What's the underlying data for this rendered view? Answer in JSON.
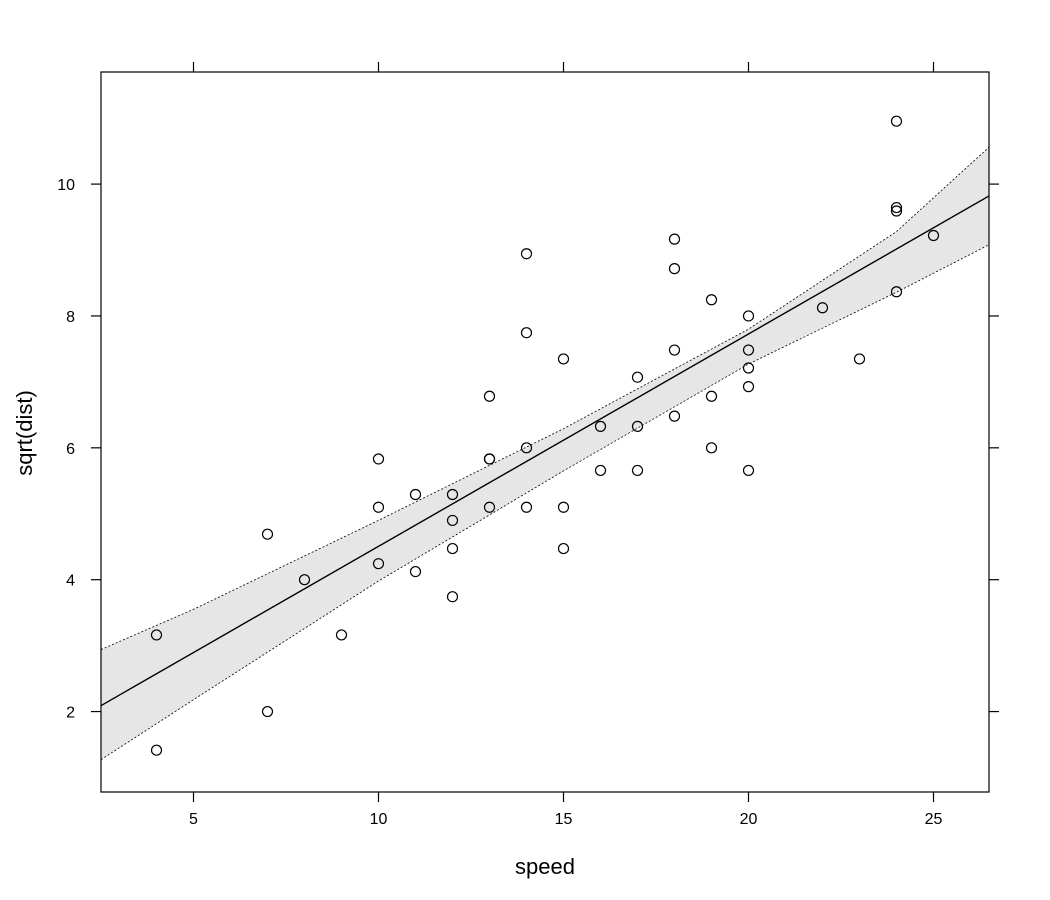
{
  "chart_data": {
    "type": "scatter",
    "title": "",
    "xlabel": "speed",
    "ylabel": "sqrt(dist)",
    "xlim": [
      2.5,
      26.5
    ],
    "ylim": [
      0.78,
      11.7
    ],
    "xticks": [
      5,
      10,
      15,
      20,
      25
    ],
    "yticks": [
      2,
      4,
      6,
      8,
      10
    ],
    "grid": false,
    "points": {
      "x": [
        4,
        4,
        7,
        7,
        8,
        9,
        10,
        10,
        10,
        11,
        11,
        12,
        12,
        12,
        12,
        13,
        13,
        13,
        13,
        14,
        14,
        14,
        14,
        15,
        15,
        15,
        16,
        16,
        17,
        17,
        17,
        18,
        18,
        18,
        18,
        19,
        19,
        19,
        20,
        20,
        20,
        20,
        20,
        22,
        23,
        24,
        24,
        24,
        24,
        25
      ],
      "y": [
        1.414,
        3.162,
        2.0,
        4.69,
        4.0,
        3.162,
        4.243,
        5.099,
        5.831,
        4.123,
        5.292,
        3.742,
        4.472,
        4.899,
        5.292,
        5.099,
        5.831,
        5.831,
        6.782,
        5.099,
        6.0,
        7.746,
        8.944,
        4.472,
        5.099,
        7.348,
        5.657,
        6.325,
        5.657,
        6.325,
        7.071,
        6.481,
        7.483,
        8.718,
        9.165,
        6.0,
        6.782,
        8.246,
        5.657,
        6.928,
        7.211,
        7.483,
        8.0,
        8.124,
        7.348,
        8.367,
        9.592,
        9.644,
        10.954,
        9.22
      ]
    },
    "fit_line": {
      "x": [
        2.5,
        26.5
      ],
      "y": [
        2.09,
        9.82
      ]
    },
    "confidence_band": {
      "x": [
        2.5,
        5,
        10,
        15,
        20,
        24,
        26.5
      ],
      "upper": [
        2.94,
        3.55,
        4.9,
        6.29,
        7.8,
        9.28,
        10.56
      ],
      "lower": [
        1.27,
        2.18,
        3.98,
        5.65,
        7.27,
        8.36,
        9.08
      ]
    }
  }
}
